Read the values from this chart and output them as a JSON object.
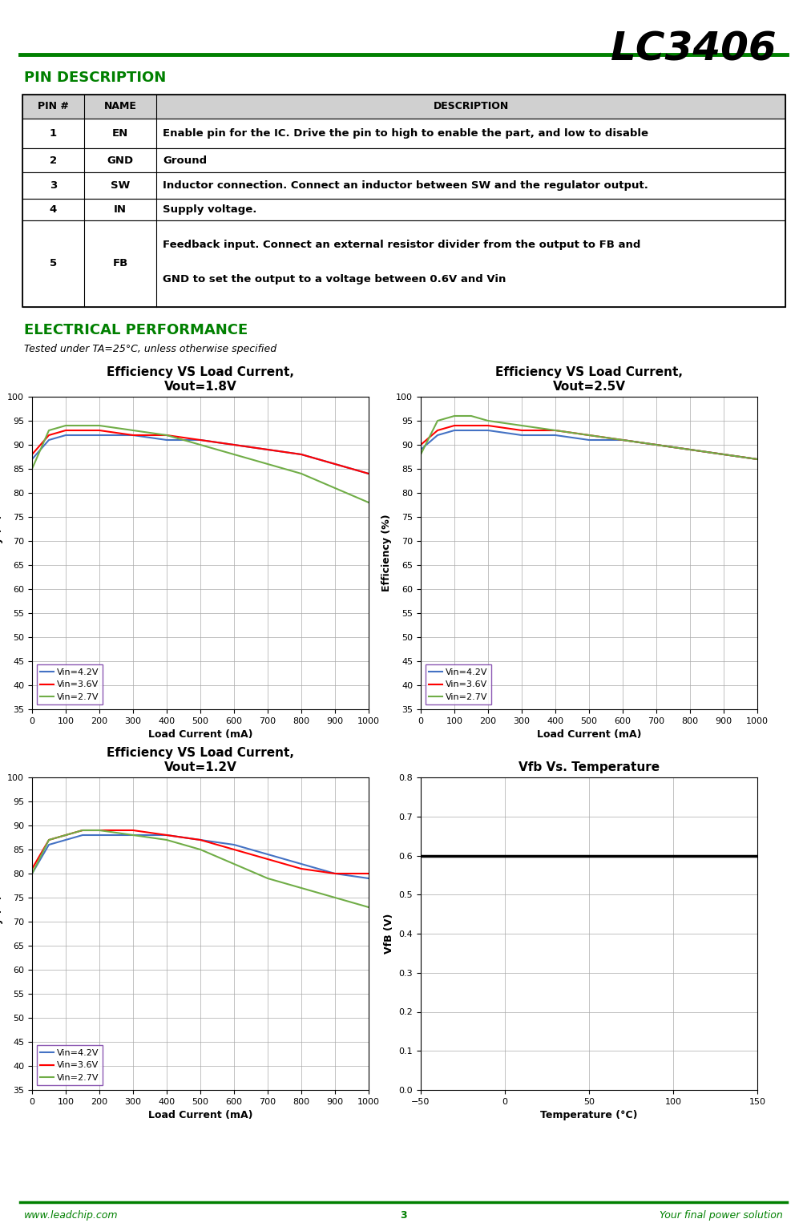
{
  "title": "LC3406",
  "green_color": "#008000",
  "section_pin": "PIN DESCRIPTION",
  "section_elec": "ELECTRICAL PERFORMANCE",
  "elec_subtitle": "Tested under TA=25°C, unless otherwise specified",
  "table_headers": [
    "PIN #",
    "NAME",
    "DESCRIPTION"
  ],
  "table_rows": [
    [
      "1",
      "EN",
      "Enable pin for the IC. Drive the pin to high to enable the part, and low to disable"
    ],
    [
      "2",
      "GND",
      "Ground"
    ],
    [
      "3",
      "SW",
      "Inductor connection. Connect an inductor between SW and the regulator output."
    ],
    [
      "4",
      "IN",
      "Supply voltage."
    ],
    [
      "5",
      "FB",
      "Feedback input. Connect an external resistor divider from the output to FB and\nGND to set the output to a voltage between 0.6V and Vin"
    ]
  ],
  "footer_left": "www.leadchip.com",
  "footer_center": "3",
  "footer_right": "Your final power solution",
  "chart1_title": "Efficiency VS Load Current,\nVout=1.8V",
  "chart2_title": "Efficiency VS Load Current,\nVout=2.5V",
  "chart3_title": "Efficiency VS Load Current,\nVout=1.2V",
  "chart4_title": "Vfb Vs. Temperature",
  "xlabel_load": "Load Current (mA)",
  "ylabel_eff": "Efficiency (%)",
  "xlabel_temp": "Temperature (°C)",
  "ylabel_vfb": "VfB (V)",
  "eff_yticks": [
    35,
    40,
    45,
    50,
    55,
    60,
    65,
    70,
    75,
    80,
    85,
    90,
    95,
    100
  ],
  "eff_ylim": [
    35,
    100
  ],
  "eff_xlim": [
    0,
    1000
  ],
  "eff_xticks": [
    0,
    100,
    200,
    300,
    400,
    500,
    600,
    700,
    800,
    900,
    1000
  ],
  "vfb_yticks": [
    0,
    0.1,
    0.2,
    0.3,
    0.4,
    0.5,
    0.6,
    0.7,
    0.8
  ],
  "vfb_ylim": [
    0,
    0.8
  ],
  "vfb_xlim": [
    -50,
    150
  ],
  "vfb_xticks": [
    -50,
    0,
    50,
    100,
    150
  ],
  "line_colors": {
    "4.2V": "#4472c4",
    "3.6V": "#ff0000",
    "2.7V": "#70ad47"
  },
  "legend_labels": [
    "Vin=4.2V",
    "Vin=3.6V",
    "Vin=2.7V"
  ],
  "vfb_color": "#000000",
  "chart1_data": {
    "4.2V": [
      [
        0,
        50,
        100,
        150,
        200,
        300,
        400,
        500,
        600,
        700,
        800,
        900,
        1000
      ],
      [
        87,
        91,
        92,
        92,
        92,
        92,
        91,
        91,
        90,
        89,
        88,
        86,
        84
      ]
    ],
    "3.6V": [
      [
        0,
        50,
        100,
        150,
        200,
        300,
        400,
        500,
        600,
        700,
        800,
        900,
        1000
      ],
      [
        88,
        92,
        93,
        93,
        93,
        92,
        92,
        91,
        90,
        89,
        88,
        86,
        84
      ]
    ],
    "2.7V": [
      [
        0,
        50,
        100,
        150,
        200,
        300,
        400,
        500,
        600,
        700,
        800,
        900,
        1000
      ],
      [
        85,
        93,
        94,
        94,
        94,
        93,
        92,
        90,
        88,
        86,
        84,
        81,
        78
      ]
    ]
  },
  "chart2_data": {
    "4.2V": [
      [
        0,
        50,
        100,
        150,
        200,
        300,
        400,
        500,
        600,
        700,
        800,
        900,
        1000
      ],
      [
        89,
        92,
        93,
        93,
        93,
        92,
        92,
        91,
        91,
        90,
        89,
        88,
        87
      ]
    ],
    "3.6V": [
      [
        0,
        50,
        100,
        150,
        200,
        300,
        400,
        500,
        600,
        700,
        800,
        900,
        1000
      ],
      [
        90,
        93,
        94,
        94,
        94,
        93,
        93,
        92,
        91,
        90,
        89,
        88,
        87
      ]
    ],
    "2.7V": [
      [
        0,
        50,
        100,
        150,
        200,
        300,
        400,
        500,
        600,
        700,
        800,
        900,
        1000
      ],
      [
        88,
        95,
        96,
        96,
        95,
        94,
        93,
        92,
        91,
        90,
        89,
        88,
        87
      ]
    ]
  },
  "chart3_data": {
    "4.2V": [
      [
        0,
        50,
        100,
        150,
        200,
        300,
        400,
        500,
        600,
        700,
        800,
        900,
        1000
      ],
      [
        80,
        86,
        87,
        88,
        88,
        88,
        88,
        87,
        86,
        84,
        82,
        80,
        79
      ]
    ],
    "3.6V": [
      [
        0,
        50,
        100,
        150,
        200,
        300,
        400,
        500,
        600,
        700,
        800,
        900,
        1000
      ],
      [
        81,
        87,
        88,
        89,
        89,
        89,
        88,
        87,
        85,
        83,
        81,
        80,
        80
      ]
    ],
    "2.7V": [
      [
        0,
        50,
        100,
        150,
        200,
        300,
        400,
        500,
        600,
        700,
        800,
        900,
        1000
      ],
      [
        80,
        87,
        88,
        89,
        89,
        88,
        87,
        85,
        82,
        79,
        77,
        75,
        73
      ]
    ]
  },
  "chart4_data": {
    "vfb": [
      [
        -50,
        -25,
        0,
        25,
        50,
        75,
        100,
        125,
        150
      ],
      [
        0.6,
        0.6,
        0.6,
        0.6,
        0.6,
        0.6,
        0.6,
        0.6,
        0.6
      ]
    ]
  }
}
